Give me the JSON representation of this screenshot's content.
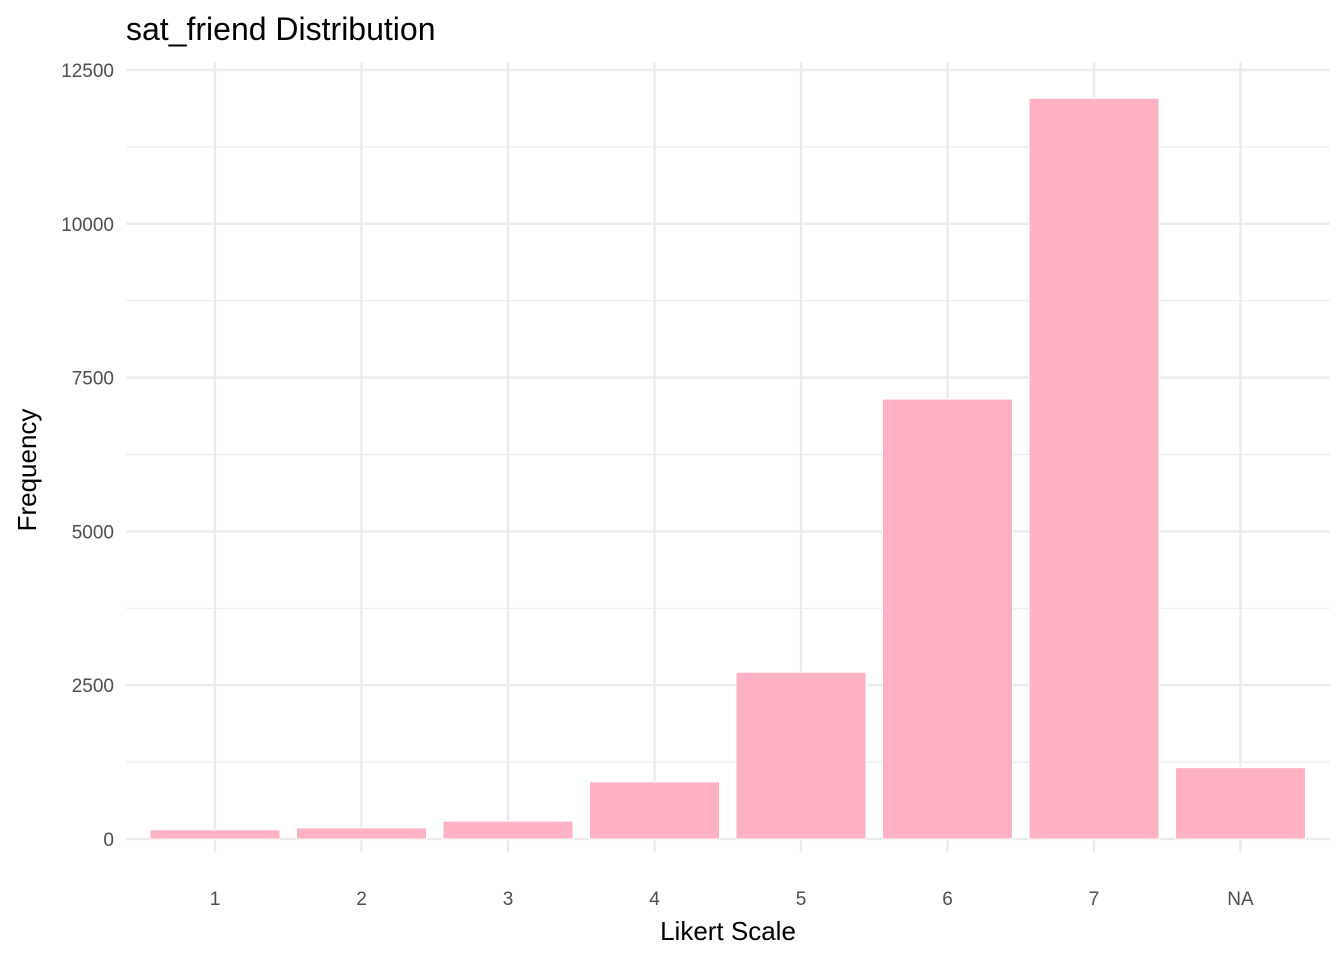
{
  "chart_data": {
    "type": "bar",
    "title": "sat_friend Distribution",
    "xlabel": "Likert Scale",
    "ylabel": "Frequency",
    "categories": [
      "1",
      "2",
      "3",
      "4",
      "5",
      "6",
      "7",
      "NA"
    ],
    "values": [
      150,
      180,
      290,
      930,
      2710,
      7150,
      12040,
      1160
    ],
    "ylim": [
      0,
      12500
    ],
    "yticks": [
      0,
      2500,
      5000,
      7500,
      10000,
      12500
    ],
    "ytick_labels": [
      "0",
      "2500",
      "5000",
      "7500",
      "10000",
      "12500"
    ],
    "bar_color": "#FDB1C3",
    "grid": true,
    "legend": "none"
  }
}
